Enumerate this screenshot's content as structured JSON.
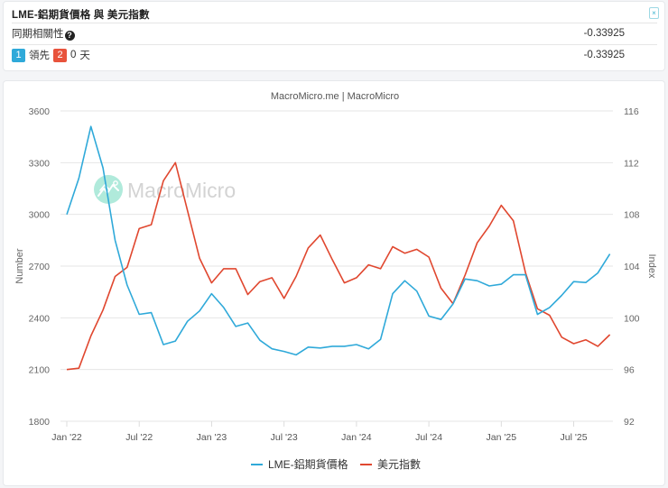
{
  "info": {
    "title": "LME-鋁期貨價格 與 美元指數",
    "correlation_label": "同期相關性",
    "correlation_value": "-0.33925",
    "lead_row": {
      "badge1": "1",
      "lead_label": "領先",
      "badge2": "2",
      "days_value": "0",
      "days_unit": "天",
      "value": "-0.33925"
    },
    "close_label": "×"
  },
  "chart": {
    "credit": "MacroMicro.me | MacroMicro",
    "watermark": "MacroMicro",
    "left_axis_title": "Number",
    "right_axis_title": "Index",
    "legend": [
      {
        "name": "LME-鋁期貨價格",
        "color": "#2fa9d9"
      },
      {
        "name": "美元指數",
        "color": "#e0472f"
      }
    ]
  },
  "chart_data": {
    "type": "line",
    "title": "LME-鋁期貨價格 與 美元指數",
    "subtitle": "MacroMicro.me | MacroMicro",
    "xlabel": "",
    "x": [
      "2022-01",
      "2022-02",
      "2022-03",
      "2022-04",
      "2022-05",
      "2022-06",
      "2022-07",
      "2022-08",
      "2022-09",
      "2022-10",
      "2022-11",
      "2022-12",
      "2023-01",
      "2023-02",
      "2023-03",
      "2023-04",
      "2023-05",
      "2023-06",
      "2023-07",
      "2023-08",
      "2023-09",
      "2023-10",
      "2023-11",
      "2023-12",
      "2024-01",
      "2024-02",
      "2024-03",
      "2024-04",
      "2024-05",
      "2024-06",
      "2024-07",
      "2024-08",
      "2024-09",
      "2024-10",
      "2024-11",
      "2024-12",
      "2025-01",
      "2025-02",
      "2025-03",
      "2025-04",
      "2025-05",
      "2025-06",
      "2025-07",
      "2025-08",
      "2025-09",
      "2025-10"
    ],
    "x_tick_labels": [
      "Jan '22",
      "Jul '22",
      "Jan '23",
      "Jul '23",
      "Jan '24",
      "Jul '24",
      "Jan '25",
      "Jul '25"
    ],
    "y_left": {
      "label": "Number",
      "ticks": [
        1800,
        2100,
        2400,
        2700,
        3000,
        3300,
        3600
      ],
      "range": [
        1800,
        3600
      ]
    },
    "y_right": {
      "label": "Index",
      "ticks": [
        92,
        96,
        100,
        104,
        108,
        112,
        116
      ],
      "range": [
        92,
        116
      ]
    },
    "grid": true,
    "legend_position": "bottom",
    "series": [
      {
        "name": "LME-鋁期貨價格",
        "axis": "left",
        "color": "#2fa9d9",
        "values": [
          3000,
          3210,
          3510,
          3270,
          2850,
          2590,
          2420,
          2430,
          2245,
          2265,
          2380,
          2440,
          2540,
          2460,
          2350,
          2370,
          2270,
          2220,
          2205,
          2185,
          2230,
          2225,
          2235,
          2235,
          2245,
          2220,
          2275,
          2540,
          2615,
          2555,
          2410,
          2390,
          2480,
          2625,
          2615,
          2585,
          2595,
          2650,
          2650,
          2420,
          2460,
          2530,
          2610,
          2605,
          2660,
          2770
        ]
      },
      {
        "name": "美元指數",
        "axis": "right",
        "color": "#e0472f",
        "values": [
          96.0,
          96.1,
          98.6,
          100.6,
          103.2,
          103.9,
          106.9,
          107.2,
          110.6,
          112.0,
          108.3,
          104.6,
          102.7,
          103.8,
          103.8,
          101.8,
          102.8,
          103.1,
          101.5,
          103.2,
          105.4,
          106.4,
          104.5,
          102.7,
          103.1,
          104.1,
          103.8,
          105.5,
          105.0,
          105.3,
          104.7,
          102.3,
          101.1,
          103.3,
          105.8,
          107.1,
          108.7,
          107.5,
          103.5,
          100.7,
          100.2,
          98.5,
          98.0,
          98.3,
          97.8,
          98.7
        ]
      }
    ]
  }
}
